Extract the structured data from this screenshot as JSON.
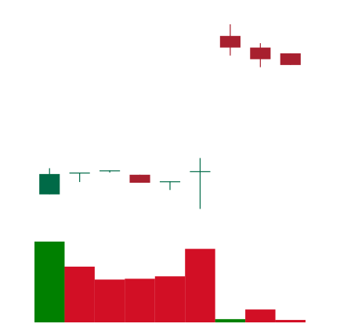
{
  "colors": {
    "up": "#006a47",
    "down": "#a8202f",
    "volume_up": "#008000",
    "volume_down": "#d20f25",
    "background": "#ffffff"
  },
  "chart_data": [
    {
      "type": "candlestick",
      "x": [
        1,
        2,
        3,
        4,
        5,
        6,
        7,
        8,
        9
      ],
      "open": [
        75.2,
        78.2,
        78.5,
        77.9,
        77.0,
        78.4,
        97.0,
        95.4,
        94.6
      ],
      "high": [
        78.8,
        78.2,
        78.5,
        77.9,
        77.0,
        80.2,
        98.6,
        96.0,
        94.6
      ],
      "low": [
        75.2,
        76.9,
        78.2,
        76.8,
        75.8,
        73.2,
        94.3,
        92.7,
        93.0
      ],
      "close": [
        78.0,
        78.2,
        78.5,
        76.8,
        77.0,
        78.4,
        95.4,
        93.8,
        93.0
      ],
      "ylim": [
        70,
        100
      ],
      "grid": false,
      "legend": "none"
    },
    {
      "type": "bar",
      "series": [
        {
          "values": [
            100,
            69,
            53,
            54,
            57,
            91,
            4,
            16,
            3
          ]
        }
      ],
      "direction": [
        "up",
        "down",
        "down",
        "down",
        "down",
        "down",
        "up",
        "down",
        "down"
      ],
      "ylim": [
        0,
        100
      ],
      "grid": false,
      "legend": "none"
    }
  ]
}
